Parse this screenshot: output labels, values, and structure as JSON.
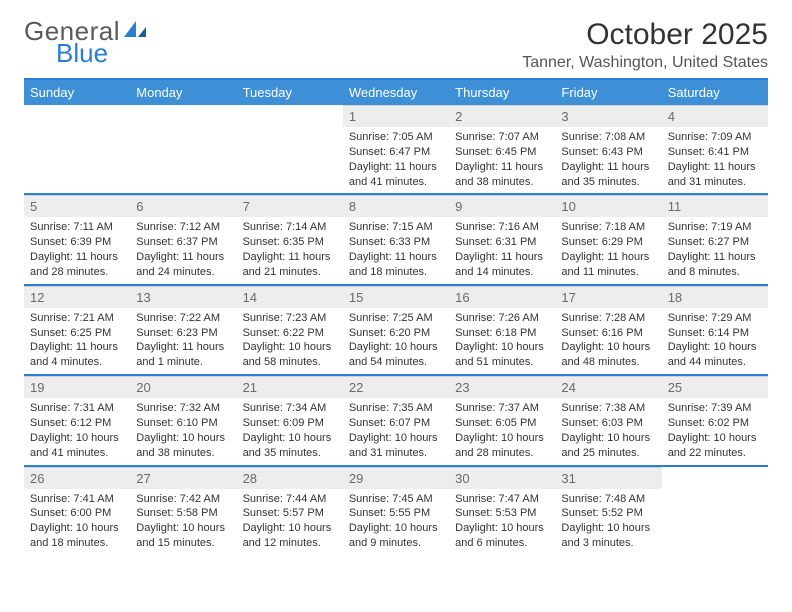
{
  "logo": {
    "general": "General",
    "blue": "Blue"
  },
  "title": "October 2025",
  "location": "Tanner, Washington, United States",
  "weekdays": [
    "Sunday",
    "Monday",
    "Tuesday",
    "Wednesday",
    "Thursday",
    "Friday",
    "Saturday"
  ],
  "colors": {
    "header_bar": "#3d8fd4",
    "divider": "#2a7fd4",
    "daynum_bg": "#ededed",
    "daynum_fg": "#6a6a6a",
    "text": "#333333"
  },
  "first_weekday_index": 3,
  "days": [
    {
      "n": 1,
      "sunrise": "7:05 AM",
      "sunset": "6:47 PM",
      "daylight": "11 hours and 41 minutes."
    },
    {
      "n": 2,
      "sunrise": "7:07 AM",
      "sunset": "6:45 PM",
      "daylight": "11 hours and 38 minutes."
    },
    {
      "n": 3,
      "sunrise": "7:08 AM",
      "sunset": "6:43 PM",
      "daylight": "11 hours and 35 minutes."
    },
    {
      "n": 4,
      "sunrise": "7:09 AM",
      "sunset": "6:41 PM",
      "daylight": "11 hours and 31 minutes."
    },
    {
      "n": 5,
      "sunrise": "7:11 AM",
      "sunset": "6:39 PM",
      "daylight": "11 hours and 28 minutes."
    },
    {
      "n": 6,
      "sunrise": "7:12 AM",
      "sunset": "6:37 PM",
      "daylight": "11 hours and 24 minutes."
    },
    {
      "n": 7,
      "sunrise": "7:14 AM",
      "sunset": "6:35 PM",
      "daylight": "11 hours and 21 minutes."
    },
    {
      "n": 8,
      "sunrise": "7:15 AM",
      "sunset": "6:33 PM",
      "daylight": "11 hours and 18 minutes."
    },
    {
      "n": 9,
      "sunrise": "7:16 AM",
      "sunset": "6:31 PM",
      "daylight": "11 hours and 14 minutes."
    },
    {
      "n": 10,
      "sunrise": "7:18 AM",
      "sunset": "6:29 PM",
      "daylight": "11 hours and 11 minutes."
    },
    {
      "n": 11,
      "sunrise": "7:19 AM",
      "sunset": "6:27 PM",
      "daylight": "11 hours and 8 minutes."
    },
    {
      "n": 12,
      "sunrise": "7:21 AM",
      "sunset": "6:25 PM",
      "daylight": "11 hours and 4 minutes."
    },
    {
      "n": 13,
      "sunrise": "7:22 AM",
      "sunset": "6:23 PM",
      "daylight": "11 hours and 1 minute."
    },
    {
      "n": 14,
      "sunrise": "7:23 AM",
      "sunset": "6:22 PM",
      "daylight": "10 hours and 58 minutes."
    },
    {
      "n": 15,
      "sunrise": "7:25 AM",
      "sunset": "6:20 PM",
      "daylight": "10 hours and 54 minutes."
    },
    {
      "n": 16,
      "sunrise": "7:26 AM",
      "sunset": "6:18 PM",
      "daylight": "10 hours and 51 minutes."
    },
    {
      "n": 17,
      "sunrise": "7:28 AM",
      "sunset": "6:16 PM",
      "daylight": "10 hours and 48 minutes."
    },
    {
      "n": 18,
      "sunrise": "7:29 AM",
      "sunset": "6:14 PM",
      "daylight": "10 hours and 44 minutes."
    },
    {
      "n": 19,
      "sunrise": "7:31 AM",
      "sunset": "6:12 PM",
      "daylight": "10 hours and 41 minutes."
    },
    {
      "n": 20,
      "sunrise": "7:32 AM",
      "sunset": "6:10 PM",
      "daylight": "10 hours and 38 minutes."
    },
    {
      "n": 21,
      "sunrise": "7:34 AM",
      "sunset": "6:09 PM",
      "daylight": "10 hours and 35 minutes."
    },
    {
      "n": 22,
      "sunrise": "7:35 AM",
      "sunset": "6:07 PM",
      "daylight": "10 hours and 31 minutes."
    },
    {
      "n": 23,
      "sunrise": "7:37 AM",
      "sunset": "6:05 PM",
      "daylight": "10 hours and 28 minutes."
    },
    {
      "n": 24,
      "sunrise": "7:38 AM",
      "sunset": "6:03 PM",
      "daylight": "10 hours and 25 minutes."
    },
    {
      "n": 25,
      "sunrise": "7:39 AM",
      "sunset": "6:02 PM",
      "daylight": "10 hours and 22 minutes."
    },
    {
      "n": 26,
      "sunrise": "7:41 AM",
      "sunset": "6:00 PM",
      "daylight": "10 hours and 18 minutes."
    },
    {
      "n": 27,
      "sunrise": "7:42 AM",
      "sunset": "5:58 PM",
      "daylight": "10 hours and 15 minutes."
    },
    {
      "n": 28,
      "sunrise": "7:44 AM",
      "sunset": "5:57 PM",
      "daylight": "10 hours and 12 minutes."
    },
    {
      "n": 29,
      "sunrise": "7:45 AM",
      "sunset": "5:55 PM",
      "daylight": "10 hours and 9 minutes."
    },
    {
      "n": 30,
      "sunrise": "7:47 AM",
      "sunset": "5:53 PM",
      "daylight": "10 hours and 6 minutes."
    },
    {
      "n": 31,
      "sunrise": "7:48 AM",
      "sunset": "5:52 PM",
      "daylight": "10 hours and 3 minutes."
    }
  ],
  "labels": {
    "sunrise": "Sunrise:",
    "sunset": "Sunset:",
    "daylight": "Daylight:"
  }
}
